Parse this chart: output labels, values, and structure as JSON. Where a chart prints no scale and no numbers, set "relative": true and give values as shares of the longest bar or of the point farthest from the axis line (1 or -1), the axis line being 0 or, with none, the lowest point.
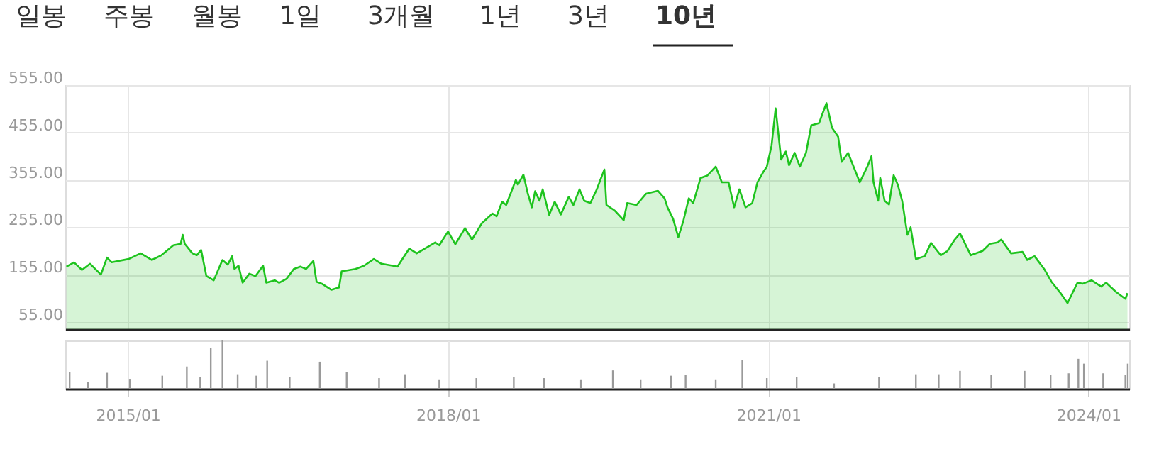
{
  "chart_data": [
    {
      "type": "area",
      "annotations": [
        "일봉",
        "주봉",
        "월봉",
        "1일",
        "3개월",
        "1년",
        "3년",
        "10년"
      ],
      "x": [
        "2014-06-05",
        "2014-07-01",
        "2014-07-28",
        "2014-08-25",
        "2014-10-01",
        "2014-10-22",
        "2014-11-07",
        "2015-01-04",
        "2015-02-14",
        "2015-03-24",
        "2015-04-26",
        "2015-06-06",
        "2015-07-01",
        "2015-07-08",
        "2015-07-15",
        "2015-08-10",
        "2015-08-25",
        "2015-09-09",
        "2015-09-27",
        "2015-10-22",
        "2015-11-21",
        "2015-12-09",
        "2015-12-24",
        "2016-01-01",
        "2016-01-15",
        "2016-01-29",
        "2016-02-21",
        "2016-03-13",
        "2016-04-08",
        "2016-04-19",
        "2016-05-18",
        "2016-06-02",
        "2016-06-27",
        "2016-07-22",
        "2016-08-14",
        "2016-09-02",
        "2016-09-27",
        "2016-10-08",
        "2016-10-26",
        "2016-11-28",
        "2016-12-24",
        "2017-01-02",
        "2017-02-18",
        "2017-03-20",
        "2017-04-22",
        "2017-05-18",
        "2017-07-12",
        "2017-08-21",
        "2017-09-16",
        "2017-11-18",
        "2017-12-02",
        "2018-01-01",
        "2018-01-26",
        "2018-02-28",
        "2018-03-24",
        "2018-04-26",
        "2018-06-02",
        "2018-06-16",
        "2018-07-05",
        "2018-07-19",
        "2018-08-21",
        "2018-08-28",
        "2018-09-16",
        "2018-10-01",
        "2018-10-15",
        "2018-10-26",
        "2018-11-10",
        "2018-11-21",
        "2018-12-13",
        "2019-01-01",
        "2019-01-22",
        "2019-02-18",
        "2019-03-06",
        "2019-03-27",
        "2019-04-12",
        "2019-05-03",
        "2019-05-25",
        "2019-06-20",
        "2019-06-27",
        "2019-07-26",
        "2019-08-25",
        "2019-09-06",
        "2019-10-08",
        "2019-11-10",
        "2019-12-20",
        "2020-01-12",
        "2020-01-22",
        "2020-02-10",
        "2020-02-28",
        "2020-03-16",
        "2020-04-04",
        "2020-04-19",
        "2020-05-14",
        "2020-06-06",
        "2020-07-05",
        "2020-07-26",
        "2020-08-18",
        "2020-09-06",
        "2020-09-24",
        "2020-10-15",
        "2020-11-07",
        "2020-11-25",
        "2020-12-17",
        "2020-12-27",
        "2021-01-12",
        "2021-01-26",
        "2021-02-14",
        "2021-03-02",
        "2021-03-13",
        "2021-04-01",
        "2021-04-19",
        "2021-05-10",
        "2021-05-28",
        "2021-06-24",
        "2021-07-05",
        "2021-07-19",
        "2021-08-07",
        "2021-08-28",
        "2021-09-09",
        "2021-10-01",
        "2021-11-10",
        "2021-12-06",
        "2021-12-20",
        "2021-12-27",
        "2022-01-12",
        "2022-01-19",
        "2022-02-03",
        "2022-02-18",
        "2022-03-06",
        "2022-03-20",
        "2022-04-04",
        "2022-04-22",
        "2022-05-03",
        "2022-05-21",
        "2022-06-20",
        "2022-07-12",
        "2022-08-14",
        "2022-09-06",
        "2022-10-01",
        "2022-10-19",
        "2022-11-25",
        "2023-01-04",
        "2023-01-29",
        "2023-02-25",
        "2023-03-09",
        "2023-04-12",
        "2023-05-21",
        "2023-06-06",
        "2023-07-01",
        "2023-08-03",
        "2023-08-28",
        "2023-09-27",
        "2023-10-22",
        "2023-11-25",
        "2023-12-13",
        "2024-01-12",
        "2024-02-14",
        "2024-03-02",
        "2024-04-04",
        "2024-05-07",
        "2024-05-14"
      ],
      "series": [
        {
          "color": "#1ec31e",
          "values": [
            172,
            181,
            165,
            178,
            155,
            191,
            181,
            188,
            200,
            186,
            196,
            217,
            220,
            239,
            220,
            200,
            196,
            207,
            152,
            143,
            186,
            176,
            194,
            167,
            174,
            138,
            157,
            152,
            174,
            138,
            143,
            138,
            146,
            167,
            172,
            167,
            184,
            140,
            136,
            123,
            128,
            162,
            167,
            174,
            188,
            178,
            172,
            210,
            200,
            223,
            217,
            246,
            219,
            253,
            229,
            263,
            284,
            278,
            309,
            302,
            355,
            345,
            366,
            326,
            297,
            331,
            311,
            335,
            281,
            309,
            282,
            319,
            302,
            335,
            311,
            306,
            335,
            377,
            302,
            290,
            270,
            306,
            302,
            326,
            332,
            316,
            297,
            273,
            234,
            268,
            316,
            306,
            359,
            364,
            383,
            350,
            350,
            297,
            335,
            297,
            306,
            350,
            374,
            383,
            427,
            506,
            398,
            415,
            386,
            412,
            383,
            412,
            470,
            475,
            494,
            517,
            465,
            446,
            393,
            412,
            350,
            383,
            405,
            350,
            311,
            359,
            311,
            303,
            365,
            345,
            311,
            239,
            255,
            188,
            194,
            222,
            196,
            205,
            229,
            242,
            196,
            205,
            220,
            223,
            229,
            200,
            203,
            186,
            194,
            167,
            140,
            117,
            95,
            138,
            136,
            143,
            130,
            138,
            119,
            104,
            116
          ]
        }
      ],
      "xlim": [
        "2014-06-01",
        "2024-05-20"
      ],
      "xticks": [
        {
          "value": "2015-01-01",
          "label": null
        },
        {
          "value": "2018-01-01",
          "label": null
        },
        {
          "value": "2021-01-01",
          "label": null
        },
        {
          "value": "2024-01-01",
          "label": null
        }
      ],
      "ylim": [
        40,
        555
      ],
      "yticks": [
        {
          "value": 55,
          "label": "55.00"
        },
        {
          "value": 155,
          "label": "155.00"
        },
        {
          "value": 255,
          "label": "255.00"
        },
        {
          "value": 355,
          "label": "355.00"
        },
        {
          "value": 455,
          "label": "455.00"
        },
        {
          "value": 555,
          "label": "555.00"
        }
      ],
      "grid": true,
      "tick_labels": "y"
    },
    {
      "type": "bar",
      "relative": true,
      "color": "#9a9a9a",
      "x": [
        "2014-06-16",
        "2014-08-18",
        "2014-10-22",
        "2015-01-08",
        "2015-04-29",
        "2015-07-22",
        "2015-09-06",
        "2015-10-12",
        "2015-11-21",
        "2016-01-12",
        "2016-03-16",
        "2016-04-22",
        "2016-07-08",
        "2016-10-19",
        "2017-01-19",
        "2017-05-10",
        "2017-08-07",
        "2017-12-02",
        "2018-04-08",
        "2018-08-14",
        "2018-11-25",
        "2019-04-01",
        "2019-07-19",
        "2019-10-22",
        "2020-02-03",
        "2020-03-24",
        "2020-07-05",
        "2020-10-04",
        "2020-12-27",
        "2021-04-08",
        "2021-08-14",
        "2022-01-15",
        "2022-05-21",
        "2022-08-07",
        "2022-10-19",
        "2023-02-03",
        "2023-05-28",
        "2023-08-25",
        "2023-10-26",
        "2023-11-28",
        "2023-12-17",
        "2024-02-21",
        "2024-05-07",
        "2024-05-15"
      ],
      "values": [
        0.34,
        0.14,
        0.33,
        0.19,
        0.27,
        0.46,
        0.24,
        0.84,
        1.0,
        0.3,
        0.27,
        0.58,
        0.24,
        0.56,
        0.34,
        0.22,
        0.3,
        0.18,
        0.22,
        0.24,
        0.22,
        0.18,
        0.38,
        0.18,
        0.27,
        0.29,
        0.18,
        0.59,
        0.22,
        0.24,
        0.11,
        0.24,
        0.3,
        0.3,
        0.37,
        0.29,
        0.37,
        0.29,
        0.32,
        0.62,
        0.52,
        0.32,
        0.29,
        0.52
      ],
      "xlim": [
        "2014-06-01",
        "2024-05-20"
      ],
      "xticks": [
        {
          "value": "2015-01-01",
          "label": "2015/01"
        },
        {
          "value": "2018-01-01",
          "label": "2018/01"
        },
        {
          "value": "2021-01-01",
          "label": "2021/01"
        },
        {
          "value": "2024-01-01",
          "label": "2024/01"
        }
      ],
      "grid": "x",
      "tick_labels": "x"
    }
  ]
}
